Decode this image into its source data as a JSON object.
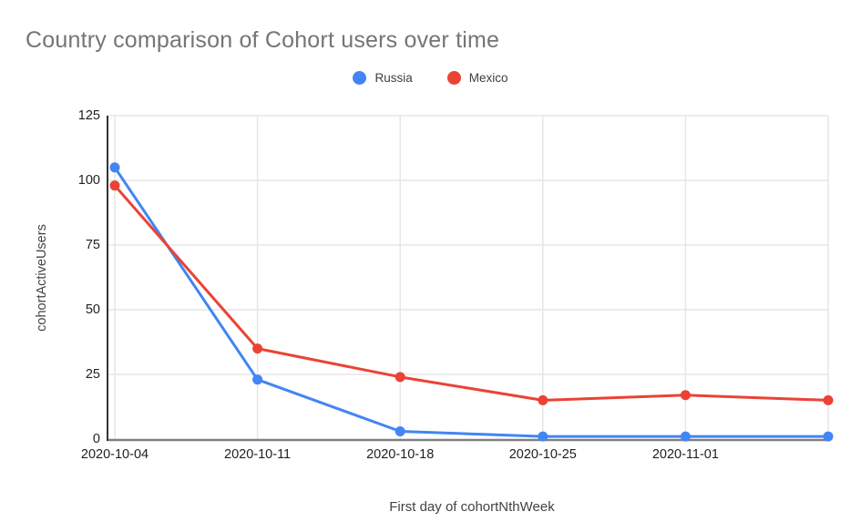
{
  "chart_data": {
    "type": "line",
    "title": "Country comparison of Cohort users over time",
    "xlabel": "First day of cohortNthWeek",
    "ylabel": "cohortActiveUsers",
    "categories": [
      "2020-10-04",
      "2020-10-11",
      "2020-10-18",
      "2020-10-25",
      "2020-11-01",
      ""
    ],
    "series": [
      {
        "name": "Russia",
        "color": "#4285f4",
        "values": [
          105,
          23,
          3,
          1,
          1,
          1
        ]
      },
      {
        "name": "Mexico",
        "color": "#ea4335",
        "values": [
          98,
          35,
          24,
          15,
          17,
          15
        ]
      }
    ],
    "y_ticks": [
      0,
      25,
      50,
      75,
      100,
      125
    ],
    "ylim": [
      0,
      125
    ],
    "grid": true,
    "legend_position": "top",
    "marker": "circle"
  },
  "colors": {
    "background": "#ffffff",
    "title_text": "#757575",
    "tick_text": "#212121",
    "axis_title_text": "#424242",
    "legend_text": "#3c4043",
    "grid_line": "#e6e6e6",
    "y_axis_line": "#333333",
    "x_axis_baseline": "#808080"
  }
}
